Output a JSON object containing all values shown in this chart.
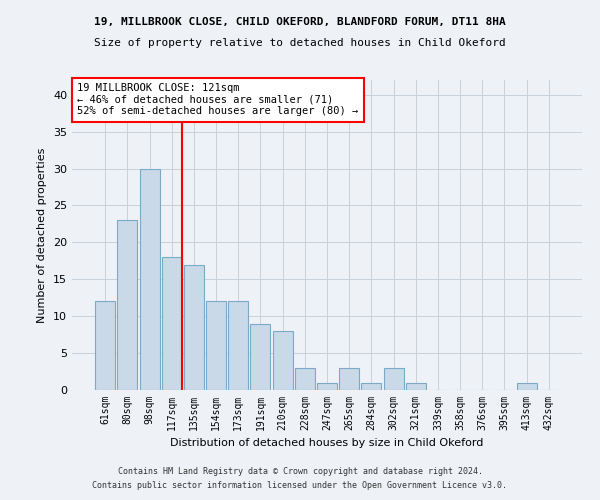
{
  "title_line1": "19, MILLBROOK CLOSE, CHILD OKEFORD, BLANDFORD FORUM, DT11 8HA",
  "title_line2": "Size of property relative to detached houses in Child Okeford",
  "xlabel": "Distribution of detached houses by size in Child Okeford",
  "ylabel": "Number of detached properties",
  "footer_line1": "Contains HM Land Registry data © Crown copyright and database right 2024.",
  "footer_line2": "Contains public sector information licensed under the Open Government Licence v3.0.",
  "categories": [
    "61sqm",
    "80sqm",
    "98sqm",
    "117sqm",
    "135sqm",
    "154sqm",
    "173sqm",
    "191sqm",
    "210sqm",
    "228sqm",
    "247sqm",
    "265sqm",
    "284sqm",
    "302sqm",
    "321sqm",
    "339sqm",
    "358sqm",
    "376sqm",
    "395sqm",
    "413sqm",
    "432sqm"
  ],
  "values": [
    12,
    23,
    30,
    18,
    17,
    12,
    12,
    9,
    8,
    3,
    1,
    3,
    1,
    3,
    1,
    0,
    0,
    0,
    0,
    1,
    0
  ],
  "bar_color": "#c9d9e8",
  "bar_edge_color": "#7aaac8",
  "vline_index": 3,
  "vline_color": "red",
  "annotation_text": "19 MILLBROOK CLOSE: 121sqm\n← 46% of detached houses are smaller (71)\n52% of semi-detached houses are larger (80) →",
  "annotation_box_color": "white",
  "annotation_box_edge_color": "red",
  "ylim": [
    0,
    42
  ],
  "yticks": [
    0,
    5,
    10,
    15,
    20,
    25,
    30,
    35,
    40
  ],
  "background_color": "#eef2f7",
  "plot_background_color": "#eef2f7",
  "grid_color": "#c8d0da"
}
